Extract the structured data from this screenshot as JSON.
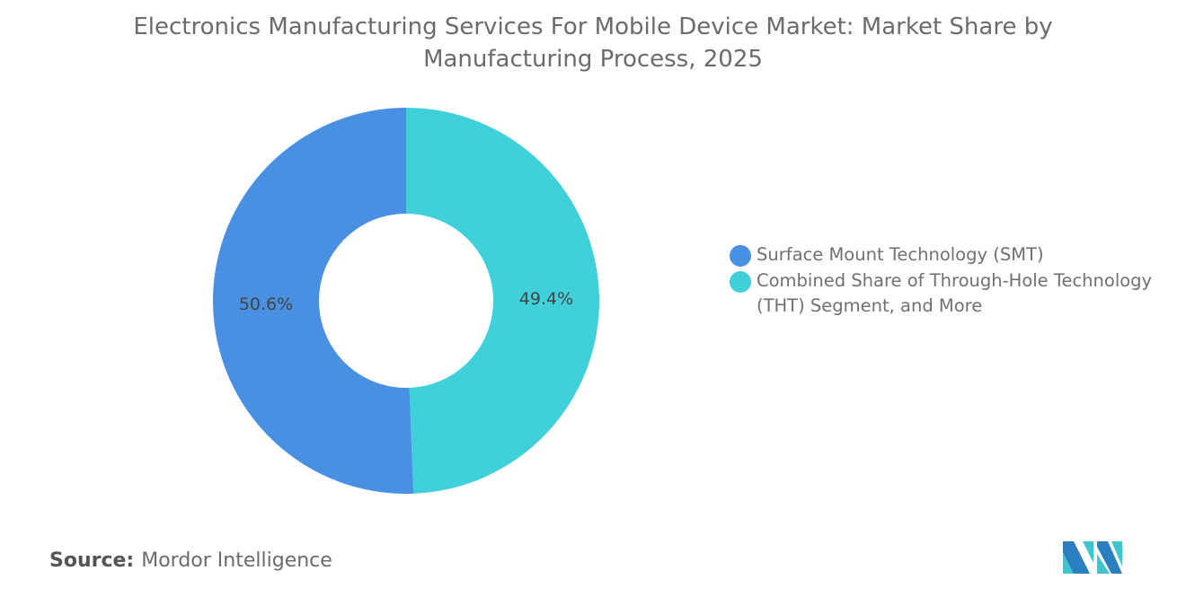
{
  "chart_data": {
    "type": "pie",
    "variant": "donut",
    "title": "Electronics Manufacturing Services For Mobile Device Market: Market Share by Manufacturing Process, 2025",
    "slices": [
      {
        "label": "Combined Share of Through-Hole Technology (THT) Segment, and More",
        "value": 49.4,
        "display": "49.4%",
        "color": "#40D0DA"
      },
      {
        "label": "Surface Mount Technology (SMT)",
        "value": 50.6,
        "display": "50.6%",
        "color": "#4A90E2"
      }
    ],
    "legend_placement": "right",
    "legend": [
      {
        "label": "Surface Mount Technology (SMT)",
        "color": "#4A90E2"
      },
      {
        "label": "Combined Share of Through-Hole Technology (THT) Segment, and More",
        "color": "#40D0DA"
      }
    ]
  },
  "source": {
    "label": "Source:",
    "value": "Mordor Intelligence"
  },
  "logo": {
    "text": "Mordor Intelligence",
    "colors": [
      "#2A7FC0",
      "#40C4CE"
    ]
  }
}
